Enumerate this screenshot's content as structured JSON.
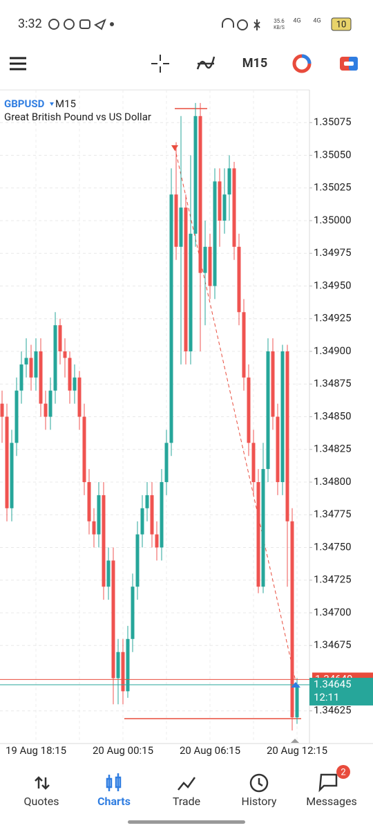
{
  "status_bar": {
    "time": "3:32",
    "speed": "35.6",
    "speed_unit": "KB/S",
    "net1": "4G",
    "net2": "4G",
    "battery": "10"
  },
  "toolbar": {
    "timeframe": "M15"
  },
  "chart_data": {
    "type": "candlestick",
    "symbol": "GBPUSD",
    "timeframe": "M15",
    "description": "Great British Pound vs US Dollar",
    "up_color": "#26a69a",
    "down_color": "#ef5350",
    "grid": true,
    "ylim": [
      1.346,
      1.351
    ],
    "yticks": [
      1.35075,
      {
        "value": 1.3505,
        "label": "1.35050"
      },
      1.35025,
      {
        "value": 1.35,
        "label": "1.35000"
      },
      1.34975,
      {
        "value": 1.3495,
        "label": "1.34950"
      },
      1.34925,
      {
        "value": 1.349,
        "label": "1.34900"
      },
      1.34875,
      {
        "value": 1.3485,
        "label": "1.34850"
      },
      1.34825,
      {
        "value": 1.348,
        "label": "1.34800"
      },
      1.34775,
      {
        "value": 1.3475,
        "label": "1.34750"
      },
      1.34725,
      {
        "value": 1.347,
        "label": "1.34700"
      },
      1.34675,
      1.34625
    ],
    "categories": [
      null,
      null,
      null,
      null,
      null,
      null,
      null,
      "19 Aug 18:15",
      null,
      null,
      null,
      null,
      null,
      null,
      null,
      null,
      null,
      null,
      null,
      null,
      null,
      null,
      null,
      null,
      null,
      "20 Aug 00:15",
      null,
      null,
      null,
      null,
      null,
      null,
      null,
      null,
      null,
      null,
      null,
      null,
      null,
      null,
      null,
      null,
      null,
      "20 Aug 06:15",
      null,
      null,
      null,
      null,
      null,
      null,
      null,
      null,
      null,
      null,
      null,
      null,
      null,
      null,
      null,
      null,
      null,
      "20 Aug 12:15"
    ],
    "open": [
      1.3486,
      1.3485,
      1.3478,
      1.3483,
      1.3487,
      1.3489,
      1.34895,
      1.3488,
      1.349,
      1.3486,
      1.3485,
      1.3487,
      1.3492,
      1.349,
      1.34895,
      1.3487,
      1.3488,
      1.3485,
      1.348,
      1.3477,
      1.3476,
      1.3479,
      1.3472,
      1.3474,
      1.3465,
      1.3467,
      1.3464,
      1.3468,
      1.3472,
      1.3476,
      1.3478,
      1.3479,
      1.3476,
      1.3475,
      1.348,
      1.3483,
      1.3502,
      1.3498,
      1.3501,
      1.349,
      1.3499,
      1.3508,
      1.3496,
      1.3498,
      1.3495,
      1.3503,
      1.35,
      1.3502,
      1.3504,
      1.3498,
      1.3493,
      1.3488,
      1.3483,
      1.348,
      1.3472,
      1.3481,
      1.349,
      1.3485,
      1.348,
      1.349,
      1.3477,
      1.3462
    ],
    "high": [
      1.3487,
      1.3486,
      1.3484,
      1.3488,
      1.349,
      1.3491,
      1.34905,
      1.3491,
      1.3491,
      1.3487,
      1.3488,
      1.3493,
      1.34925,
      1.3491,
      1.349,
      1.3489,
      1.34885,
      1.3486,
      1.3481,
      1.3478,
      1.348,
      1.348,
      1.3475,
      1.3475,
      1.3468,
      1.3468,
      1.3469,
      1.3473,
      1.3477,
      1.3479,
      1.348,
      1.348,
      1.3477,
      1.3481,
      1.3484,
      1.3504,
      1.3506,
      1.3508,
      1.3502,
      1.3505,
      1.3509,
      1.3509,
      1.35,
      1.3499,
      1.3504,
      1.3504,
      1.3504,
      1.3505,
      1.35045,
      1.3499,
      1.3494,
      1.3489,
      1.3484,
      1.3481,
      1.3483,
      1.3491,
      1.3491,
      1.3486,
      1.34905,
      1.34905,
      1.3478,
      1.3465
    ],
    "low": [
      1.3483,
      1.3477,
      1.3477,
      1.3482,
      1.3486,
      1.3488,
      1.3487,
      1.3487,
      1.3485,
      1.3484,
      1.3484,
      1.3486,
      1.3489,
      1.3488,
      1.3486,
      1.3486,
      1.3484,
      1.3479,
      1.3476,
      1.3475,
      1.3475,
      1.3471,
      1.3471,
      1.3463,
      1.3463,
      1.3463,
      1.34635,
      1.3467,
      1.3471,
      1.3475,
      1.3477,
      1.3475,
      1.3474,
      1.3474,
      1.3479,
      1.3482,
      1.3497,
      1.3489,
      1.3489,
      1.3489,
      1.3498,
      1.349,
      1.3492,
      1.3494,
      1.3494,
      1.3498,
      1.3499,
      1.35,
      1.3497,
      1.3492,
      1.3487,
      1.3482,
      1.3479,
      1.34715,
      1.34715,
      1.348,
      1.3484,
      1.3479,
      1.3479,
      1.3472,
      1.3461,
      1.34615
    ],
    "close": [
      1.3485,
      1.3478,
      1.3483,
      1.3487,
      1.3489,
      1.34895,
      1.3488,
      1.349,
      1.3486,
      1.3485,
      1.3487,
      1.3492,
      1.349,
      1.34895,
      1.3487,
      1.3488,
      1.3485,
      1.348,
      1.3477,
      1.3476,
      1.3479,
      1.3472,
      1.3474,
      1.3465,
      1.3467,
      1.3464,
      1.3468,
      1.3472,
      1.3476,
      1.3478,
      1.3479,
      1.3476,
      1.3475,
      1.348,
      1.3483,
      1.3502,
      1.3498,
      1.3501,
      1.349,
      1.3499,
      1.3508,
      1.3496,
      1.3498,
      1.3495,
      1.3503,
      1.35,
      1.3502,
      1.3504,
      1.3498,
      1.3493,
      1.3488,
      1.3483,
      1.348,
      1.3472,
      1.3481,
      1.349,
      1.3485,
      1.348,
      1.349,
      1.3477,
      1.3462,
      1.34645
    ],
    "bid": 1.34645,
    "ask": 1.34649,
    "bar_timer": "12:11"
  },
  "bottom_nav": {
    "items": [
      "Quotes",
      "Charts",
      "Trade",
      "History",
      "Messages"
    ],
    "badge": "2"
  }
}
